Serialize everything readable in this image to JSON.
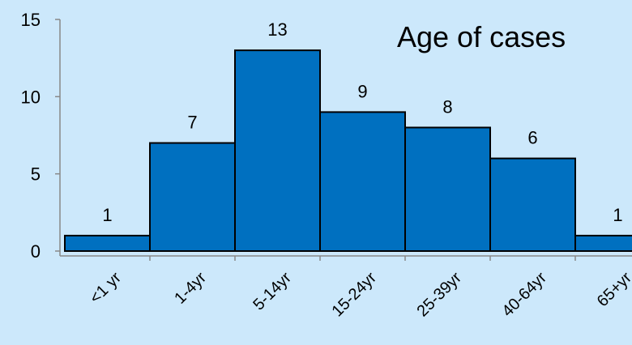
{
  "chart_data": {
    "type": "bar",
    "title": "Age of cases",
    "categories": [
      "<1 yr",
      "1-4yr",
      "5-14yr",
      "15-24yr",
      "25-39yr",
      "40-64yr",
      "65+yr"
    ],
    "values": [
      1,
      7,
      13,
      9,
      8,
      6,
      1
    ],
    "xlabel": "",
    "ylabel": "",
    "ylim": [
      0,
      15
    ],
    "yticks": [
      0,
      5,
      10,
      15
    ],
    "grid": false,
    "bar_color": "#0070c0",
    "bar_edge_color": "#000000",
    "background": "#cce8fb"
  }
}
